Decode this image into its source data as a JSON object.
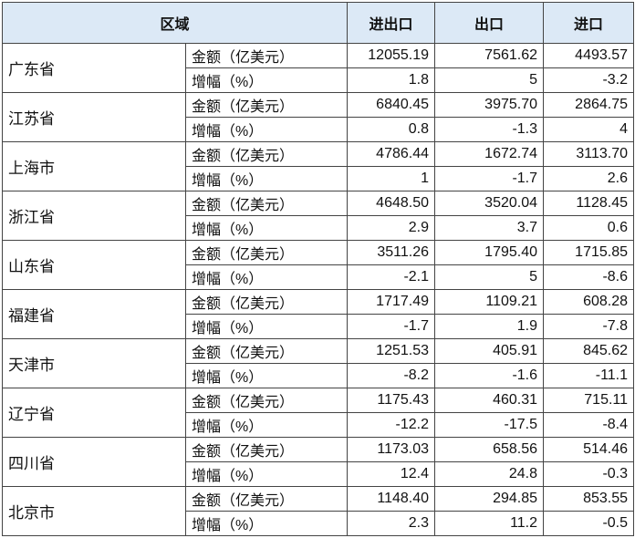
{
  "table": {
    "headers": [
      "区域",
      "进出口",
      "出口",
      "进口"
    ],
    "rows": [
      {
        "region": "广东省",
        "metrics": [
          [
            "金额（亿美元）",
            "12055.19",
            "7561.62",
            "4493.57"
          ],
          [
            "增幅（%）",
            "1.8",
            "5",
            "-3.2"
          ]
        ]
      },
      {
        "region": "江苏省",
        "metrics": [
          [
            "金额（亿美元）",
            "6840.45",
            "3975.70",
            "2864.75"
          ],
          [
            "增幅（%）",
            "0.8",
            "-1.3",
            "4"
          ]
        ]
      },
      {
        "region": "上海市",
        "metrics": [
          [
            "金额（亿美元）",
            "4786.44",
            "1672.74",
            "3113.70"
          ],
          [
            "增幅（%）",
            "1",
            "-1.7",
            "2.6"
          ]
        ]
      },
      {
        "region": "浙江省",
        "metrics": [
          [
            "金额（亿美元）",
            "4648.50",
            "3520.04",
            "1128.45"
          ],
          [
            "增幅（%）",
            "2.9",
            "3.7",
            "0.6"
          ]
        ]
      },
      {
        "region": "山东省",
        "metrics": [
          [
            "金额（亿美元）",
            "3511.26",
            "1795.40",
            "1715.85"
          ],
          [
            "增幅（%）",
            "-2.1",
            "5",
            "-8.6"
          ]
        ]
      },
      {
        "region": "福建省",
        "metrics": [
          [
            "金额（亿美元）",
            "1717.49",
            "1109.21",
            "608.28"
          ],
          [
            "增幅（%）",
            "-1.7",
            "1.9",
            "-7.8"
          ]
        ]
      },
      {
        "region": "天津市",
        "metrics": [
          [
            "金额（亿美元）",
            "1251.53",
            "405.91",
            "845.62"
          ],
          [
            "增幅（%）",
            "-8.2",
            "-1.6",
            "-11.1"
          ]
        ]
      },
      {
        "region": "辽宁省",
        "metrics": [
          [
            "金额（亿美元）",
            "1175.43",
            "460.31",
            "715.11"
          ],
          [
            "增幅（%）",
            "-12.2",
            "-17.5",
            "-8.4"
          ]
        ]
      },
      {
        "region": "四川省",
        "metrics": [
          [
            "金额（亿美元）",
            "1173.03",
            "658.56",
            "514.46"
          ],
          [
            "增幅（%）",
            "12.4",
            "24.8",
            "-0.3"
          ]
        ]
      },
      {
        "region": "北京市",
        "metrics": [
          [
            "金额（亿美元）",
            "1148.40",
            "294.85",
            "853.55"
          ],
          [
            "增幅（%）",
            "2.3",
            "11.2",
            "-0.5"
          ]
        ]
      }
    ]
  }
}
